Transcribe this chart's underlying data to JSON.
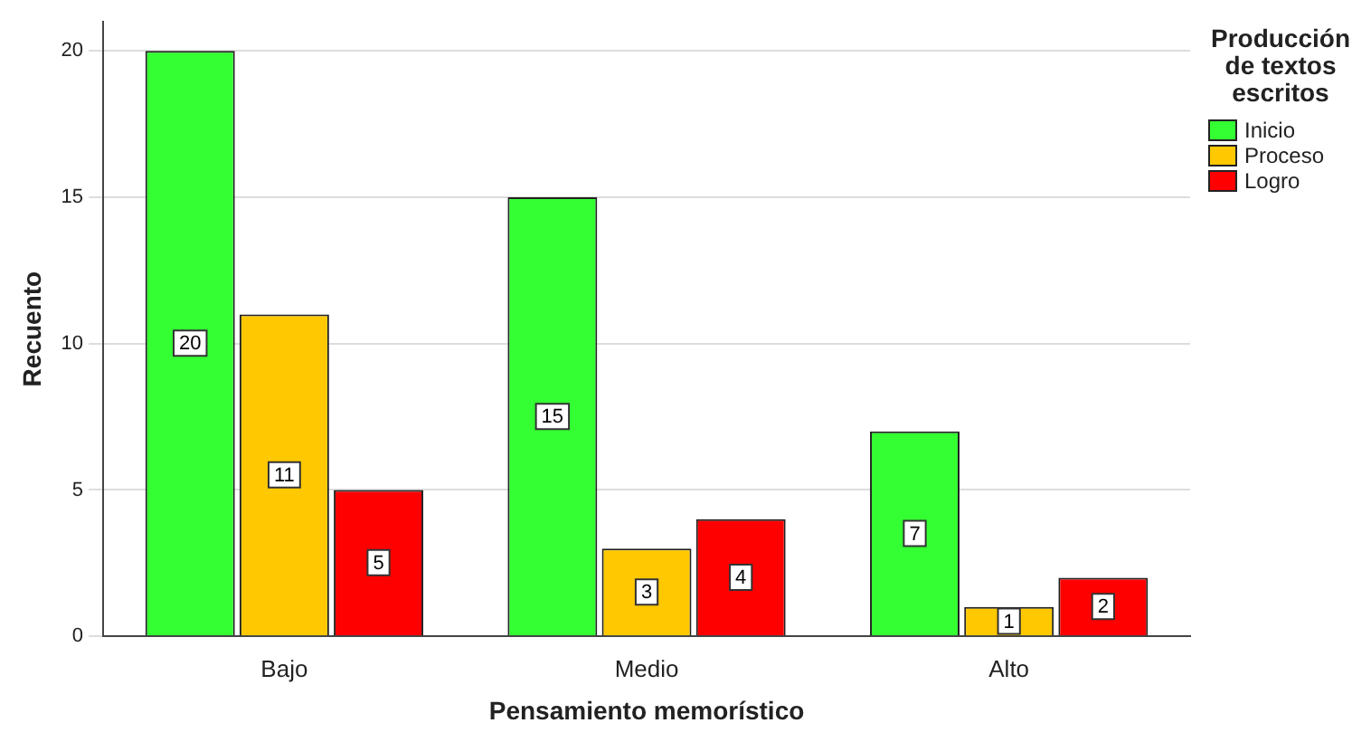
{
  "chart_data": {
    "type": "bar",
    "xlabel": "Pensamiento memorístico",
    "ylabel": "Recuento",
    "legend_title": "Producción de textos escritos",
    "legend": "top right",
    "categories": [
      "Bajo",
      "Medio",
      "Alto"
    ],
    "series": [
      {
        "name": "Inicio",
        "color": "#33ff33",
        "values": [
          20,
          15,
          7
        ]
      },
      {
        "name": "Proceso",
        "color": "#ffc800",
        "values": [
          11,
          3,
          1
        ]
      },
      {
        "name": "Logro",
        "color": "#ff0000",
        "values": [
          5,
          4,
          2
        ]
      }
    ],
    "ylim": [
      0,
      21
    ],
    "yticks": [
      0,
      5,
      10,
      15,
      20
    ],
    "grid": "y",
    "data_labels": true
  }
}
